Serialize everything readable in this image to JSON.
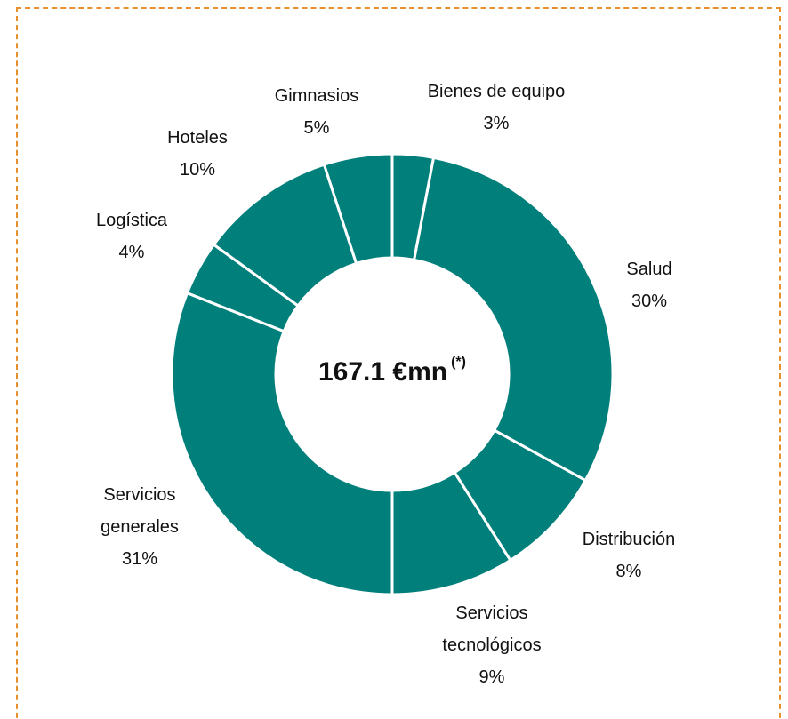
{
  "chart_data": {
    "type": "donut",
    "categories": [
      "Bienes de equipo",
      "Salud",
      "Distribución",
      "Servicios tecnológicos",
      "Servicios generales",
      "Logística",
      "Hoteles",
      "Gimnasios"
    ],
    "values": [
      3,
      30,
      8,
      9,
      31,
      4,
      10,
      5
    ],
    "value_labels": [
      "3%",
      "30%",
      "8%",
      "9%",
      "31%",
      "4%",
      "10%",
      "5%"
    ],
    "color": "#007f7b",
    "center_label": "167.1 €mn",
    "center_note": "(*)"
  }
}
